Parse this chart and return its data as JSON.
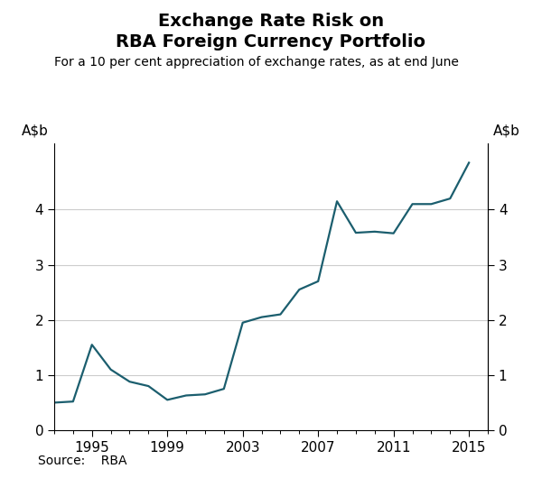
{
  "title_line1": "Exchange Rate Risk on",
  "title_line2": "RBA Foreign Currency Portfolio",
  "subtitle": "For a 10 per cent appreciation of exchange rates, as at end June",
  "ylabel_left": "A$b",
  "ylabel_right": "A$b",
  "source": "Source:    RBA",
  "line_color": "#1b5e6e",
  "line_width": 1.6,
  "background_color": "#ffffff",
  "xlim": [
    1993,
    2016
  ],
  "ylim": [
    0,
    5.2
  ],
  "yticks": [
    0,
    1,
    2,
    3,
    4
  ],
  "xticks": [
    1995,
    1999,
    2003,
    2007,
    2011,
    2015
  ],
  "years": [
    1993,
    1994,
    1995,
    1996,
    1997,
    1998,
    1999,
    2000,
    2001,
    2002,
    2003,
    2004,
    2005,
    2006,
    2007,
    2008,
    2009,
    2010,
    2011,
    2012,
    2013,
    2014,
    2015
  ],
  "values": [
    0.5,
    0.52,
    1.55,
    1.1,
    0.88,
    0.8,
    0.55,
    0.63,
    0.65,
    0.75,
    1.95,
    2.05,
    2.1,
    2.55,
    2.7,
    4.15,
    3.58,
    3.6,
    3.57,
    4.1,
    4.1,
    4.2,
    4.85
  ]
}
